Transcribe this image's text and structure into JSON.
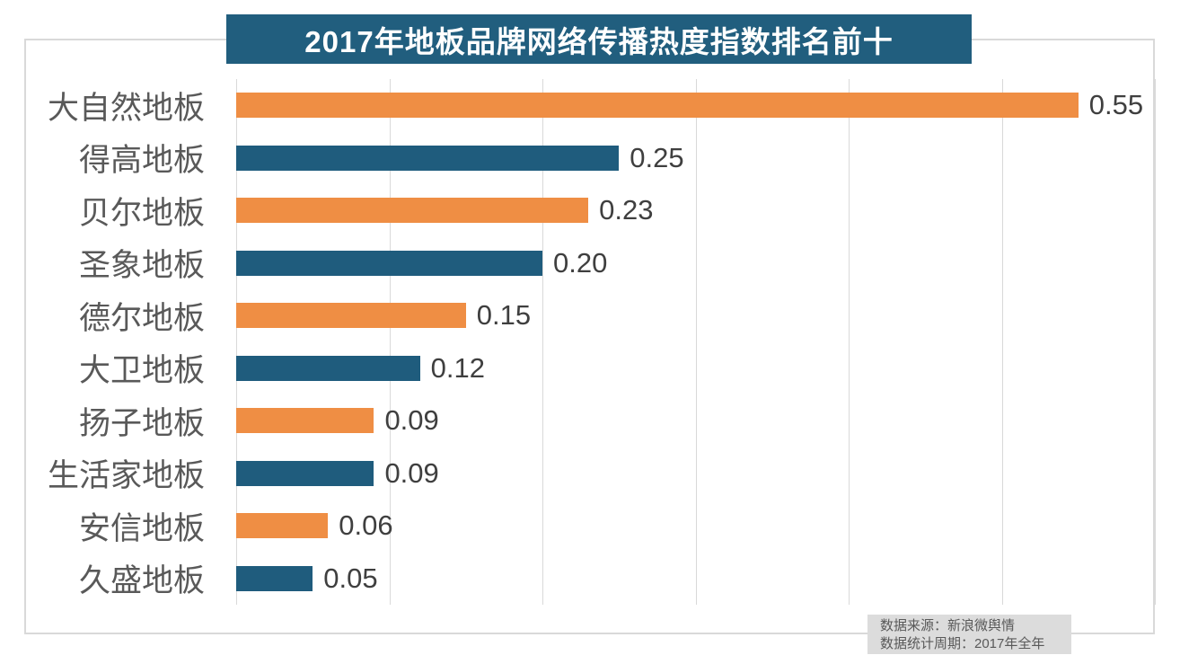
{
  "title": "2017年地板品牌网络传播热度指数排名前十",
  "source_note": {
    "line1": "数据来源：新浪微舆情",
    "line2": "数据统计周期：2017年全年"
  },
  "colors": {
    "title_bg": "#215E7E",
    "title_text": "#FFFFFF",
    "bar_orange": "#EF8E44",
    "bar_teal": "#1F5C7D",
    "gridline": "#D9D9D9",
    "frame_border": "#D9D9D9",
    "category_label": "#595959",
    "value_label": "#3F3F3F",
    "source_bg": "#DCDCDC",
    "source_text": "#595959"
  },
  "chart_data": {
    "type": "bar",
    "orientation": "horizontal",
    "title": "2017年地板品牌网络传播热度指数排名前十",
    "categories": [
      "大自然地板",
      "得高地板",
      "贝尔地板",
      "圣象地板",
      "德尔地板",
      "大卫地板",
      "扬子地板",
      "生活家地板",
      "安信地板",
      "久盛地板"
    ],
    "values": [
      0.55,
      0.25,
      0.23,
      0.2,
      0.15,
      0.12,
      0.09,
      0.09,
      0.06,
      0.05
    ],
    "value_labels": [
      "0.55",
      "0.25",
      "0.23",
      "0.20",
      "0.15",
      "0.12",
      "0.09",
      "0.09",
      "0.06",
      "0.05"
    ],
    "xlabel": "",
    "ylabel": "",
    "xlim": [
      0,
      0.6
    ],
    "gridline_step": 0.1,
    "grid": "vertical",
    "legend": "none",
    "bar_color_pattern": [
      "orange",
      "teal"
    ]
  }
}
